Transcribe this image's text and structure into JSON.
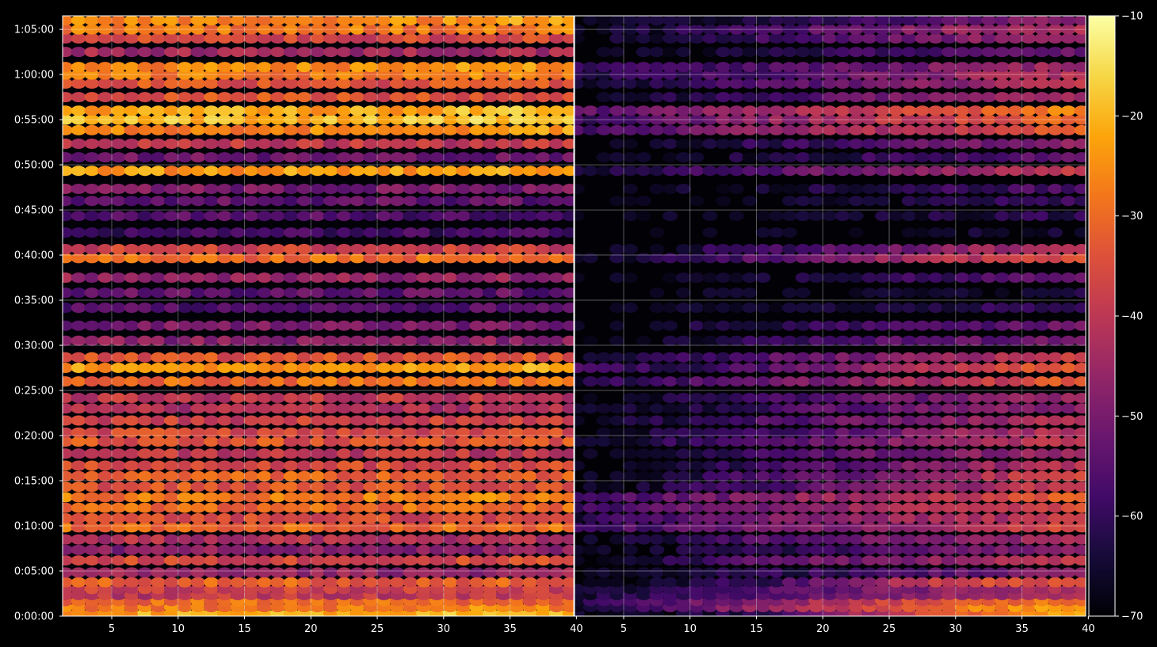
{
  "chart_data": {
    "type": "heatmap",
    "title": "",
    "xlabel": "",
    "ylabel": "",
    "colormap": "inferno",
    "background": "#000000",
    "grid": true,
    "panels": [
      {
        "name": "",
        "xlim": [
          1.3,
          39.8
        ],
        "x_ticks": [
          5,
          10,
          15,
          20,
          25,
          30,
          35,
          40
        ]
      },
      {
        "name": "",
        "xlim": [
          1.3,
          39.8
        ],
        "x_ticks": [
          5,
          10,
          15,
          20,
          25,
          30,
          35,
          40
        ]
      }
    ],
    "y_axis": {
      "unit": "seconds (displayed h:mm:ss)",
      "ylim_seconds": [
        0,
        3990
      ],
      "ticks_seconds": [
        0,
        300,
        600,
        900,
        1200,
        1500,
        1800,
        2100,
        2400,
        2700,
        3000,
        3300,
        3600,
        3900
      ],
      "tick_labels": [
        "0:00:00",
        "0:05:00",
        "0:10:00",
        "0:15:00",
        "0:20:00",
        "0:25:00",
        "0:30:00",
        "0:35:00",
        "0:40:00",
        "0:45:00",
        "0:50:00",
        "0:55:00",
        "1:00:00",
        "1:05:00"
      ]
    },
    "colorbar": {
      "range": [
        -70,
        -10
      ],
      "ticks": [
        -70,
        -60,
        -50,
        -40,
        -30,
        -20,
        -10
      ],
      "tick_labels": [
        "−70",
        "−60",
        "−50",
        "−40",
        "−30",
        "−20",
        "−10"
      ]
    },
    "x_columns": {
      "start": 1.5,
      "end": 39.5,
      "step": 1
    },
    "bands": [
      {
        "t": 20,
        "left": -22,
        "right_profile": [
          [
            0,
            -68
          ],
          [
            15,
            -62
          ],
          [
            25,
            -40
          ],
          [
            40,
            -18
          ]
        ]
      },
      {
        "t": 60,
        "left": -28,
        "right_profile": [
          [
            0,
            -66
          ],
          [
            15,
            -45
          ],
          [
            30,
            -28
          ],
          [
            40,
            -24
          ]
        ]
      },
      {
        "t": 100,
        "left": -30,
        "right_profile": [
          [
            0,
            -65
          ],
          [
            15,
            -48
          ],
          [
            30,
            -32
          ],
          [
            40,
            -28
          ]
        ]
      },
      {
        "t": 140,
        "left": -40,
        "right_profile": [
          [
            0,
            -66
          ],
          [
            20,
            -52
          ],
          [
            40,
            -40
          ]
        ]
      },
      {
        "t": 180,
        "left": -38,
        "right_profile": [
          [
            0,
            -68
          ],
          [
            25,
            -50
          ],
          [
            40,
            -42
          ]
        ]
      },
      {
        "t": 225,
        "left": -32,
        "right_profile": [
          [
            0,
            -70
          ],
          [
            15,
            -60
          ],
          [
            30,
            -36
          ],
          [
            40,
            -34
          ]
        ]
      },
      {
        "t": 290,
        "left": -46,
        "right_profile": [
          [
            0,
            -70
          ],
          [
            20,
            -60
          ],
          [
            40,
            -48
          ]
        ]
      },
      {
        "t": 370,
        "left": -36,
        "right_profile": [
          [
            0,
            -70
          ],
          [
            15,
            -55
          ],
          [
            40,
            -40
          ]
        ]
      },
      {
        "t": 440,
        "left": -48,
        "right_profile": [
          [
            0,
            -70
          ],
          [
            25,
            -56
          ],
          [
            40,
            -48
          ]
        ]
      },
      {
        "t": 510,
        "left": -42,
        "right_profile": [
          [
            0,
            -70
          ],
          [
            20,
            -52
          ],
          [
            40,
            -44
          ]
        ]
      },
      {
        "t": 590,
        "left": -30,
        "right_profile": [
          [
            0,
            -60
          ],
          [
            15,
            -52
          ],
          [
            40,
            -36
          ]
        ]
      },
      {
        "t": 650,
        "left": -36,
        "right_profile": [
          [
            0,
            -64
          ],
          [
            15,
            -50
          ],
          [
            40,
            -40
          ]
        ]
      },
      {
        "t": 720,
        "left": -30,
        "right_profile": [
          [
            0,
            -58
          ],
          [
            20,
            -48
          ],
          [
            40,
            -34
          ]
        ]
      },
      {
        "t": 790,
        "left": -28,
        "right_profile": [
          [
            0,
            -60
          ],
          [
            20,
            -46
          ],
          [
            40,
            -32
          ]
        ]
      },
      {
        "t": 860,
        "left": -34,
        "right_profile": [
          [
            0,
            -70
          ],
          [
            10,
            -62
          ],
          [
            40,
            -38
          ]
        ]
      },
      {
        "t": 930,
        "left": -32,
        "right_profile": [
          [
            0,
            -70
          ],
          [
            15,
            -58
          ],
          [
            40,
            -36
          ]
        ]
      },
      {
        "t": 1000,
        "left": -36,
        "right_profile": [
          [
            0,
            -70
          ],
          [
            15,
            -60
          ],
          [
            40,
            -40
          ]
        ]
      },
      {
        "t": 1080,
        "left": -40,
        "right_profile": [
          [
            0,
            -70
          ],
          [
            15,
            -58
          ],
          [
            40,
            -44
          ]
        ]
      },
      {
        "t": 1160,
        "left": -34,
        "right_profile": [
          [
            0,
            -70
          ],
          [
            10,
            -60
          ],
          [
            40,
            -38
          ]
        ]
      },
      {
        "t": 1220,
        "left": -36,
        "right_profile": [
          [
            0,
            -70
          ],
          [
            10,
            -62
          ],
          [
            40,
            -40
          ]
        ]
      },
      {
        "t": 1300,
        "left": -38,
        "right_profile": [
          [
            0,
            -70
          ],
          [
            15,
            -56
          ],
          [
            40,
            -42
          ]
        ]
      },
      {
        "t": 1380,
        "left": -42,
        "right_profile": [
          [
            0,
            -70
          ],
          [
            20,
            -56
          ],
          [
            40,
            -46
          ]
        ]
      },
      {
        "t": 1450,
        "left": -40,
        "right_profile": [
          [
            0,
            -70
          ],
          [
            20,
            -56
          ],
          [
            40,
            -44
          ]
        ]
      },
      {
        "t": 1560,
        "left": -30,
        "right_profile": [
          [
            0,
            -64
          ],
          [
            20,
            -50
          ],
          [
            40,
            -32
          ]
        ]
      },
      {
        "t": 1650,
        "left": -24,
        "right_profile": [
          [
            0,
            -56
          ],
          [
            10,
            -62
          ],
          [
            25,
            -44
          ],
          [
            40,
            -32
          ]
        ]
      },
      {
        "t": 1720,
        "left": -34,
        "right_profile": [
          [
            0,
            -68
          ],
          [
            20,
            -52
          ],
          [
            40,
            -38
          ]
        ]
      },
      {
        "t": 1830,
        "left": -48,
        "right_profile": [
          [
            0,
            -70
          ],
          [
            25,
            -56
          ],
          [
            40,
            -50
          ]
        ]
      },
      {
        "t": 1930,
        "left": -50,
        "right_profile": [
          [
            0,
            -70
          ],
          [
            25,
            -58
          ],
          [
            40,
            -52
          ]
        ]
      },
      {
        "t": 2050,
        "left": -56,
        "right_profile": [
          [
            0,
            -70
          ],
          [
            30,
            -62
          ],
          [
            40,
            -60
          ]
        ]
      },
      {
        "t": 2150,
        "left": -54,
        "right_profile": [
          [
            0,
            -70
          ],
          [
            40,
            -64
          ]
        ]
      },
      {
        "t": 2250,
        "left": -46,
        "right_profile": [
          [
            0,
            -70
          ],
          [
            20,
            -64
          ],
          [
            40,
            -52
          ]
        ]
      },
      {
        "t": 2380,
        "left": -30,
        "right_profile": [
          [
            0,
            -70
          ],
          [
            10,
            -60
          ],
          [
            25,
            -46
          ],
          [
            40,
            -34
          ]
        ]
      },
      {
        "t": 2440,
        "left": -38,
        "right_profile": [
          [
            0,
            -70
          ],
          [
            20,
            -56
          ],
          [
            40,
            -40
          ]
        ]
      },
      {
        "t": 2550,
        "left": -58,
        "right_profile": [
          [
            0,
            -70
          ],
          [
            40,
            -66
          ]
        ]
      },
      {
        "t": 2660,
        "left": -56,
        "right_profile": [
          [
            0,
            -70
          ],
          [
            30,
            -64
          ],
          [
            40,
            -60
          ]
        ]
      },
      {
        "t": 2760,
        "left": -54,
        "right_profile": [
          [
            0,
            -70
          ],
          [
            30,
            -64
          ],
          [
            40,
            -58
          ]
        ]
      },
      {
        "t": 2840,
        "left": -50,
        "right_profile": [
          [
            0,
            -70
          ],
          [
            30,
            -60
          ],
          [
            40,
            -56
          ]
        ]
      },
      {
        "t": 2960,
        "left": -24,
        "right_profile": [
          [
            0,
            -66
          ],
          [
            20,
            -52
          ],
          [
            40,
            -40
          ]
        ]
      },
      {
        "t": 3050,
        "left": -52,
        "right_profile": [
          [
            0,
            -70
          ],
          [
            30,
            -58
          ],
          [
            40,
            -54
          ]
        ]
      },
      {
        "t": 3140,
        "left": -40,
        "right_profile": [
          [
            0,
            -70
          ],
          [
            25,
            -56
          ],
          [
            40,
            -46
          ]
        ]
      },
      {
        "t": 3230,
        "left": -26,
        "right_profile": [
          [
            0,
            -58
          ],
          [
            15,
            -48
          ],
          [
            40,
            -32
          ]
        ]
      },
      {
        "t": 3300,
        "left": -20,
        "right_profile": [
          [
            0,
            -60
          ],
          [
            20,
            -44
          ],
          [
            40,
            -30
          ]
        ]
      },
      {
        "t": 3360,
        "left": -22,
        "right_profile": [
          [
            0,
            -56
          ],
          [
            20,
            -42
          ],
          [
            40,
            -26
          ]
        ]
      },
      {
        "t": 3450,
        "left": -34,
        "right_profile": [
          [
            0,
            -70
          ],
          [
            20,
            -54
          ],
          [
            40,
            -42
          ]
        ]
      },
      {
        "t": 3540,
        "left": -34,
        "right_profile": [
          [
            0,
            -66
          ],
          [
            20,
            -54
          ],
          [
            40,
            -40
          ]
        ]
      },
      {
        "t": 3600,
        "left": -28,
        "right_profile": [
          [
            0,
            -64
          ],
          [
            20,
            -54
          ],
          [
            40,
            -40
          ]
        ]
      },
      {
        "t": 3650,
        "left": -26,
        "right_profile": [
          [
            0,
            -62
          ],
          [
            20,
            -54
          ],
          [
            40,
            -44
          ]
        ]
      },
      {
        "t": 3750,
        "left": -44,
        "right_profile": [
          [
            0,
            -70
          ],
          [
            20,
            -60
          ],
          [
            40,
            -52
          ]
        ]
      },
      {
        "t": 3840,
        "left": -36,
        "right_profile": [
          [
            0,
            -68
          ],
          [
            20,
            -56
          ],
          [
            40,
            -44
          ]
        ]
      },
      {
        "t": 3900,
        "left": -28,
        "right_profile": [
          [
            0,
            -70
          ],
          [
            15,
            -58
          ],
          [
            40,
            -40
          ]
        ]
      },
      {
        "t": 3960,
        "left": -26,
        "right_profile": [
          [
            0,
            -70
          ],
          [
            20,
            -60
          ],
          [
            40,
            -46
          ]
        ]
      }
    ]
  }
}
